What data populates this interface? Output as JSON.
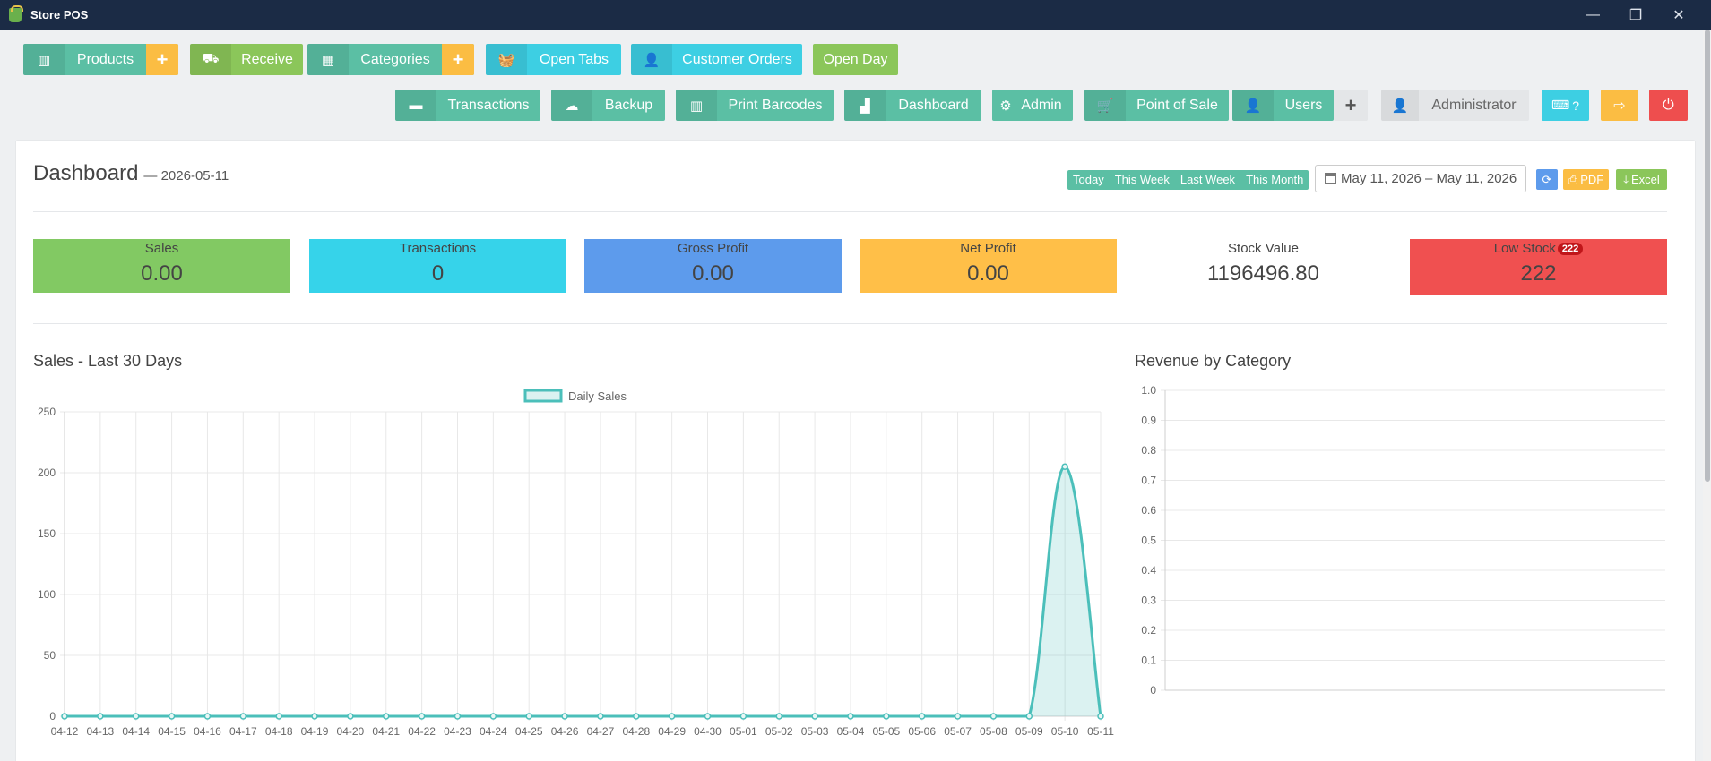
{
  "window": {
    "title": "Store POS",
    "controls": [
      "—",
      "❐",
      "✕"
    ]
  },
  "toolbar_row1": [
    {
      "name": "products",
      "label": "Products",
      "icon": "barcode-icon",
      "plus": true
    },
    {
      "name": "receive",
      "label": "Receive",
      "icon": "truck-icon",
      "plus": false
    },
    {
      "name": "categories",
      "label": "Categories",
      "icon": "grid-icon",
      "plus": true
    },
    {
      "name": "open-tabs",
      "label": "Open Tabs",
      "icon": "basket-icon",
      "plus": false
    },
    {
      "name": "customer-orders",
      "label": "Customer Orders",
      "icon": "user-icon",
      "plus": false
    },
    {
      "name": "open-day",
      "label": "Open Day",
      "icon": "",
      "plus": false
    }
  ],
  "toolbar_row2": [
    {
      "name": "transactions",
      "label": "Transactions",
      "icon": "card-icon"
    },
    {
      "name": "backup",
      "label": "Backup",
      "icon": "cloud-upload-icon"
    },
    {
      "name": "print-barcodes",
      "label": "Print Barcodes",
      "icon": "barcode-icon"
    },
    {
      "name": "dashboard",
      "label": "Dashboard",
      "icon": "bar-chart-icon"
    },
    {
      "name": "admin",
      "label": "Admin",
      "icon": "cogs-icon"
    },
    {
      "name": "point-of-sale",
      "label": "Point of Sale",
      "icon": "cart-icon"
    },
    {
      "name": "users",
      "label": "Users",
      "icon": "user-icon"
    }
  ],
  "user": {
    "name": "Administrator",
    "keyboard_label": "?"
  },
  "dashboard": {
    "title": "Dashboard",
    "date_suffix": "— 2026-05-11",
    "range_buttons": [
      "Today",
      "This Week",
      "Last Week",
      "This Month"
    ],
    "date_range": "May 11, 2026 – May 11, 2026",
    "pdf_label": "PDF",
    "excel_label": "Excel"
  },
  "stats": {
    "sales": {
      "label": "Sales",
      "value": "0.00",
      "color": "#82c963"
    },
    "transactions": {
      "label": "Transactions",
      "value": "0",
      "color": "#36d3ea"
    },
    "gross_profit": {
      "label": "Gross Profit",
      "value": "0.00",
      "color": "#5d9bec"
    },
    "net_profit": {
      "label": "Net Profit",
      "value": "0.00",
      "color": "#ffbf48"
    },
    "stock_value": {
      "label": "Stock Value",
      "value": "1196496.80",
      "color": "#ffffff"
    },
    "low_stock": {
      "label": "Low Stock",
      "badge": "222",
      "value": "222",
      "color": "#f05050"
    }
  },
  "chart_data": [
    {
      "type": "line",
      "title": "Sales - Last 30 Days",
      "legend": "top",
      "grid": true,
      "categories": [
        "04-12",
        "04-13",
        "04-14",
        "04-15",
        "04-16",
        "04-17",
        "04-18",
        "04-19",
        "04-20",
        "04-21",
        "04-22",
        "04-23",
        "04-24",
        "04-25",
        "04-26",
        "04-27",
        "04-28",
        "04-29",
        "04-30",
        "05-01",
        "05-02",
        "05-03",
        "05-04",
        "05-05",
        "05-06",
        "05-07",
        "05-08",
        "05-09",
        "05-10",
        "05-11"
      ],
      "series": [
        {
          "name": "Daily Sales",
          "values": [
            0,
            0,
            0,
            0,
            0,
            0,
            0,
            0,
            0,
            0,
            0,
            0,
            0,
            0,
            0,
            0,
            0,
            0,
            0,
            0,
            0,
            0,
            0,
            0,
            0,
            0,
            0,
            0,
            205,
            0
          ],
          "color": "#4bbfba"
        }
      ],
      "ylim": [
        0,
        250
      ],
      "yticks": [
        0,
        50,
        100,
        150,
        200,
        250
      ]
    },
    {
      "type": "bar",
      "title": "Revenue by Category",
      "grid": true,
      "categories": [],
      "values": [],
      "ylim": [
        0,
        1.0
      ],
      "yticks": [
        "0",
        "0.1",
        "0.2",
        "0.3",
        "0.4",
        "0.5",
        "0.6",
        "0.7",
        "0.8",
        "0.9",
        "1.0"
      ]
    }
  ]
}
